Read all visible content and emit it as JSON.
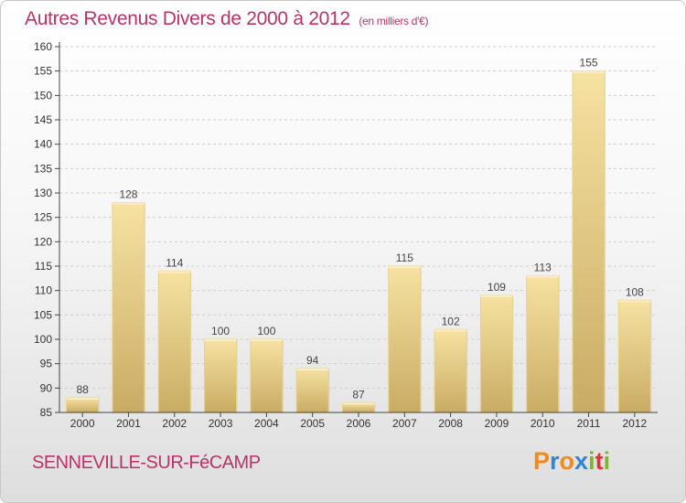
{
  "header": {
    "title": "Autres Revenus Divers de 2000 à 2012",
    "unit": "(en milliers d'€)"
  },
  "footer": {
    "place": "SENNEVILLE-SUR-FéCAMP",
    "logo_parts": [
      {
        "text": "P",
        "color": "#f08a1c"
      },
      {
        "text": "r",
        "color": "#2e86d6"
      },
      {
        "text": "o",
        "color": "#f08a1c"
      },
      {
        "text": "x",
        "color": "#2e86d6"
      },
      {
        "text": "i",
        "color": "#7ab82d"
      },
      {
        "text": "t",
        "color": "#e0332f"
      },
      {
        "text": "i",
        "color": "#7ab82d"
      }
    ]
  },
  "chart_data": {
    "type": "bar",
    "title": "Autres Revenus Divers de 2000 à 2012",
    "subtitle": "(en milliers d'€)",
    "xlabel": "",
    "ylabel": "",
    "categories": [
      "2000",
      "2001",
      "2002",
      "2003",
      "2004",
      "2005",
      "2006",
      "2007",
      "2008",
      "2009",
      "2010",
      "2011",
      "2012"
    ],
    "values": [
      88,
      128,
      114,
      100,
      100,
      94,
      87,
      115,
      102,
      109,
      113,
      155,
      108
    ],
    "ylim": [
      85,
      160
    ],
    "yticks": [
      85,
      90,
      95,
      100,
      105,
      110,
      115,
      120,
      125,
      130,
      135,
      140,
      145,
      150,
      155,
      160
    ],
    "grid": true,
    "colors": {
      "bar_light": "#f3dc98",
      "bar_dark": "#c8ab63",
      "grid": "#cfcfcf",
      "axis": "#444444"
    }
  }
}
